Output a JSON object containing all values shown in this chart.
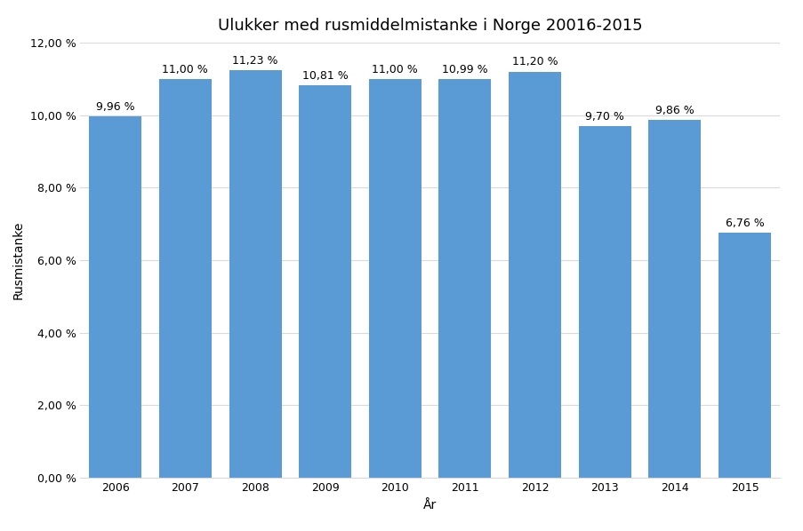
{
  "title": "Ulukker med rusmiddelmistanke i Norge 20016-2015",
  "xlabel": "År",
  "ylabel": "Rusmistanke",
  "categories": [
    "2006",
    "2007",
    "2008",
    "2009",
    "2010",
    "2011",
    "2012",
    "2013",
    "2014",
    "2015"
  ],
  "values": [
    9.96,
    11.0,
    11.23,
    10.81,
    11.0,
    10.99,
    11.2,
    9.7,
    9.86,
    6.76
  ],
  "bar_color": "#5B9BD5",
  "ylim": [
    0,
    12
  ],
  "yticks": [
    0,
    2,
    4,
    6,
    8,
    10,
    12
  ],
  "ytick_labels": [
    "0,00 %",
    "2,00 %",
    "4,00 %",
    "6,00 %",
    "8,00 %",
    "10,00 %",
    "12,00 %"
  ],
  "value_labels": [
    "9,96 %",
    "11,00 %",
    "11,23 %",
    "10,81 %",
    "11,00 %",
    "10,99 %",
    "11,20 %",
    "9,70 %",
    "9,86 %",
    "6,76 %"
  ],
  "background_color": "#ffffff",
  "grid_color": "#d9d9d9",
  "title_fontsize": 13,
  "label_fontsize": 10,
  "tick_fontsize": 9,
  "bar_label_fontsize": 9,
  "bar_width": 0.75
}
